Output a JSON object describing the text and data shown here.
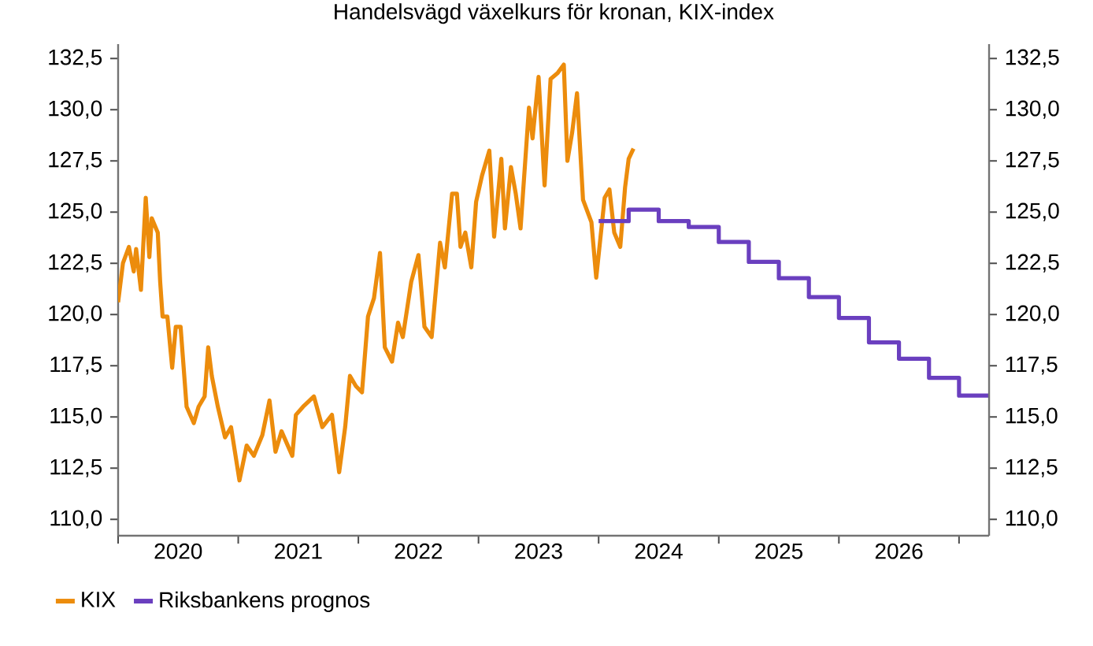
{
  "chart_data": {
    "type": "line",
    "title": "Handelsvägd växelkurs för kronan, KIX-index",
    "xlim": [
      2020,
      2027.25
    ],
    "ylim": [
      109.2,
      133.2
    ],
    "y2lim": [
      109.2,
      133.2
    ],
    "xticks": [
      {
        "value": 2020,
        "label": null
      },
      {
        "value": 2021,
        "label": null
      },
      {
        "value": 2022,
        "label": null
      },
      {
        "value": 2023,
        "label": null
      },
      {
        "value": 2024,
        "label": null
      },
      {
        "value": 2025,
        "label": null
      },
      {
        "value": 2026,
        "label": null
      },
      {
        "value": 2027,
        "label": null
      },
      {
        "value": 2020.5,
        "label": "2020"
      },
      {
        "value": 2021.5,
        "label": "2021"
      },
      {
        "value": 2022.5,
        "label": "2022"
      },
      {
        "value": 2023.5,
        "label": "2023"
      },
      {
        "value": 2024.5,
        "label": "2024"
      },
      {
        "value": 2025.5,
        "label": "2025"
      },
      {
        "value": 2026.5,
        "label": "2026"
      }
    ],
    "yticks": [
      {
        "value": 110,
        "label": "110,0"
      },
      {
        "value": 112.5,
        "label": "112,5"
      },
      {
        "value": 115,
        "label": "115,0"
      },
      {
        "value": 117.5,
        "label": "117,5"
      },
      {
        "value": 120,
        "label": "120,0"
      },
      {
        "value": 122.5,
        "label": "122,5"
      },
      {
        "value": 125,
        "label": "125,0"
      },
      {
        "value": 127.5,
        "label": "127,5"
      },
      {
        "value": 130,
        "label": "130,0"
      },
      {
        "value": 132.5,
        "label": "132,5"
      }
    ],
    "y2ticks": [
      {
        "value": 110,
        "label": "110,0"
      },
      {
        "value": 112.5,
        "label": "112,5"
      },
      {
        "value": 115,
        "label": "115,0"
      },
      {
        "value": 117.5,
        "label": "117,5"
      },
      {
        "value": 120,
        "label": "120,0"
      },
      {
        "value": 122.5,
        "label": "122,5"
      },
      {
        "value": 125,
        "label": "125,0"
      },
      {
        "value": 127.5,
        "label": "127,5"
      },
      {
        "value": 130,
        "label": "130,0"
      },
      {
        "value": 132.5,
        "label": "132,5"
      }
    ],
    "legend": "bottom left",
    "grid": false,
    "series": [
      {
        "name": "KIX",
        "color": "#ec8c0c",
        "x": [
          2020.0,
          2020.04,
          2020.09,
          2020.13,
          2020.15,
          2020.19,
          2020.23,
          2020.26,
          2020.28,
          2020.33,
          2020.35,
          2020.37,
          2020.41,
          2020.45,
          2020.48,
          2020.52,
          2020.57,
          2020.63,
          2020.67,
          2020.72,
          2020.75,
          2020.78,
          2020.83,
          2020.89,
          2020.94,
          2021.01,
          2021.07,
          2021.13,
          2021.2,
          2021.26,
          2021.31,
          2021.36,
          2021.45,
          2021.48,
          2021.54,
          2021.63,
          2021.7,
          2021.78,
          2021.84,
          2021.89,
          2021.93,
          2021.98,
          2022.03,
          2022.08,
          2022.13,
          2022.18,
          2022.22,
          2022.28,
          2022.33,
          2022.37,
          2022.44,
          2022.5,
          2022.55,
          2022.61,
          2022.68,
          2022.72,
          2022.78,
          2022.82,
          2022.85,
          2022.89,
          2022.94,
          2022.98,
          2023.03,
          2023.09,
          2023.13,
          2023.19,
          2023.22,
          2023.27,
          2023.31,
          2023.35,
          2023.42,
          2023.45,
          2023.5,
          2023.55,
          2023.6,
          2023.66,
          2023.71,
          2023.74,
          2023.78,
          2023.82,
          2023.87,
          2023.94,
          2023.98,
          2024.05,
          2024.09,
          2024.13,
          2024.18,
          2024.22,
          2024.25,
          2024.29
        ],
        "values": [
          120.6,
          122.5,
          123.3,
          122.1,
          123.2,
          121.2,
          125.7,
          122.8,
          124.7,
          124.0,
          121.6,
          119.9,
          119.9,
          117.4,
          119.4,
          119.4,
          115.5,
          114.7,
          115.5,
          116.0,
          118.4,
          117.0,
          115.5,
          114.0,
          114.5,
          111.9,
          113.6,
          113.1,
          114.1,
          115.8,
          113.3,
          114.3,
          113.1,
          115.1,
          115.5,
          116.0,
          114.5,
          115.1,
          112.3,
          114.5,
          117.0,
          116.5,
          116.2,
          119.9,
          120.8,
          123.0,
          118.4,
          117.7,
          119.6,
          118.9,
          121.6,
          122.9,
          119.4,
          118.9,
          123.5,
          122.3,
          125.9,
          125.9,
          123.3,
          124.0,
          122.3,
          125.5,
          126.8,
          128.0,
          123.8,
          127.6,
          124.2,
          127.2,
          125.9,
          124.2,
          130.1,
          128.6,
          131.6,
          126.3,
          131.5,
          131.8,
          132.2,
          127.5,
          128.9,
          130.8,
          125.6,
          124.5,
          121.8,
          125.7,
          126.1,
          124.0,
          123.3,
          126.2,
          127.6,
          128.1
        ]
      },
      {
        "name": "Riksbankens prognos",
        "type": "step",
        "color": "#6a3fbf",
        "x": [
          2024.0,
          2024.25,
          2024.5,
          2024.75,
          2025.0,
          2025.25,
          2025.5,
          2025.75,
          2026.0,
          2026.25,
          2026.5,
          2026.75,
          2027.0,
          2027.25
        ],
        "values": [
          124.56,
          125.12,
          124.56,
          124.27,
          123.54,
          122.57,
          121.77,
          120.85,
          119.83,
          118.64,
          117.84,
          116.91,
          116.04,
          116.04
        ]
      }
    ]
  }
}
